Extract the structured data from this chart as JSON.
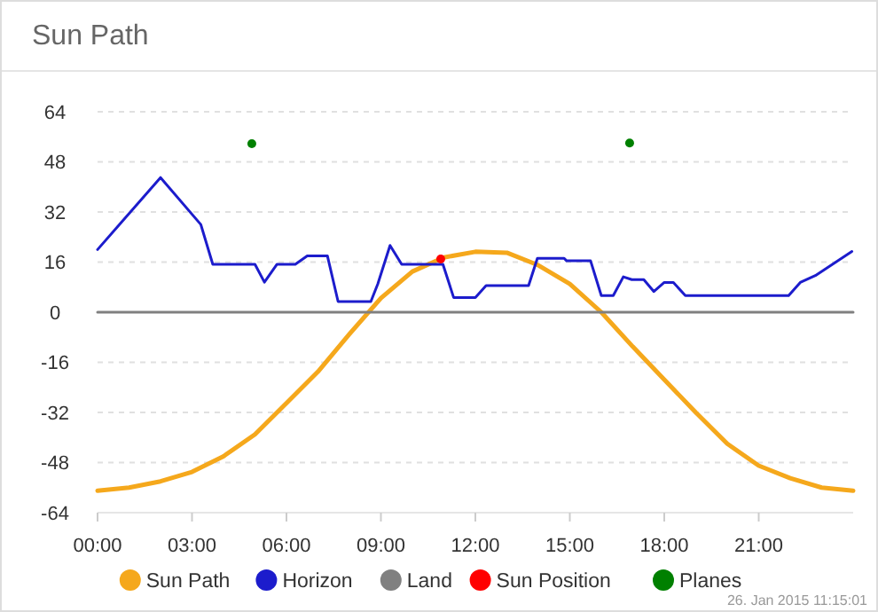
{
  "chart_data": {
    "type": "line",
    "title": "Sun Path",
    "xlim": [
      0,
      24
    ],
    "ylim": [
      -64,
      64
    ],
    "xticks": [
      {
        "value": 0,
        "label": "00:00"
      },
      {
        "value": 3,
        "label": "03:00"
      },
      {
        "value": 6,
        "label": "06:00"
      },
      {
        "value": 9,
        "label": "09:00"
      },
      {
        "value": 12,
        "label": "12:00"
      },
      {
        "value": 15,
        "label": "15:00"
      },
      {
        "value": 18,
        "label": "18:00"
      },
      {
        "value": 21,
        "label": "21:00"
      }
    ],
    "yticks": [
      -64,
      -48,
      -32,
      -16,
      0,
      16,
      32,
      48,
      64
    ],
    "grid": "y",
    "legend": "bottom",
    "annotations": [
      "26. Jan 2015 11:15:01"
    ],
    "series": [
      {
        "name": "Sun Path",
        "color": "#f5a81c",
        "x": [
          0,
          1,
          2,
          3,
          4,
          5,
          6,
          7,
          8,
          9,
          10,
          11,
          12,
          13,
          14,
          15,
          16,
          17,
          18,
          19,
          20,
          21,
          22,
          23,
          24
        ],
        "values": [
          -57,
          -56,
          -54,
          -51,
          -46,
          -39,
          -29,
          -19,
          -7,
          4.5,
          13,
          17.5,
          19.3,
          19,
          15,
          9,
          0,
          -11,
          -21.5,
          -32,
          -42,
          -49,
          -53,
          -56,
          -57
        ]
      },
      {
        "name": "Horizon",
        "color": "#1c1ccc",
        "x": [
          0,
          2.0,
          3.28,
          3.66,
          5.0,
          5.3,
          5.7,
          6.28,
          6.66,
          7.3,
          7.64,
          8.68,
          8.9,
          9.29,
          9.66,
          10.97,
          11.31,
          12.0,
          12.34,
          13.69,
          13.97,
          14.82,
          14.9,
          15.66,
          16.0,
          16.38,
          16.7,
          16.97,
          17.35,
          17.67,
          18.0,
          18.29,
          18.67,
          21.95,
          22.32,
          22.8,
          23.96
        ],
        "values": [
          20,
          43,
          28,
          15.3,
          15.3,
          9.6,
          15.3,
          15.3,
          18,
          18,
          3.4,
          3.4,
          9,
          21.3,
          15.3,
          15.3,
          4.7,
          4.7,
          8.5,
          8.5,
          17.2,
          17.2,
          16.4,
          16.4,
          5.3,
          5.3,
          11.3,
          10.4,
          10.4,
          6.6,
          9.5,
          9.5,
          5.3,
          5.3,
          9.5,
          11.7,
          19.4
        ]
      },
      {
        "name": "Land",
        "color": "#808080",
        "x": [
          0,
          24
        ],
        "values": [
          0,
          0
        ]
      },
      {
        "name": "Sun Position",
        "type": "scatter",
        "color": "#ff0000",
        "x": [
          10.9
        ],
        "values": [
          17
        ]
      },
      {
        "name": "Planes",
        "type": "scatter",
        "color": "#008000",
        "x": [
          4.9,
          16.9
        ],
        "values": [
          53.8,
          54
        ]
      }
    ]
  }
}
